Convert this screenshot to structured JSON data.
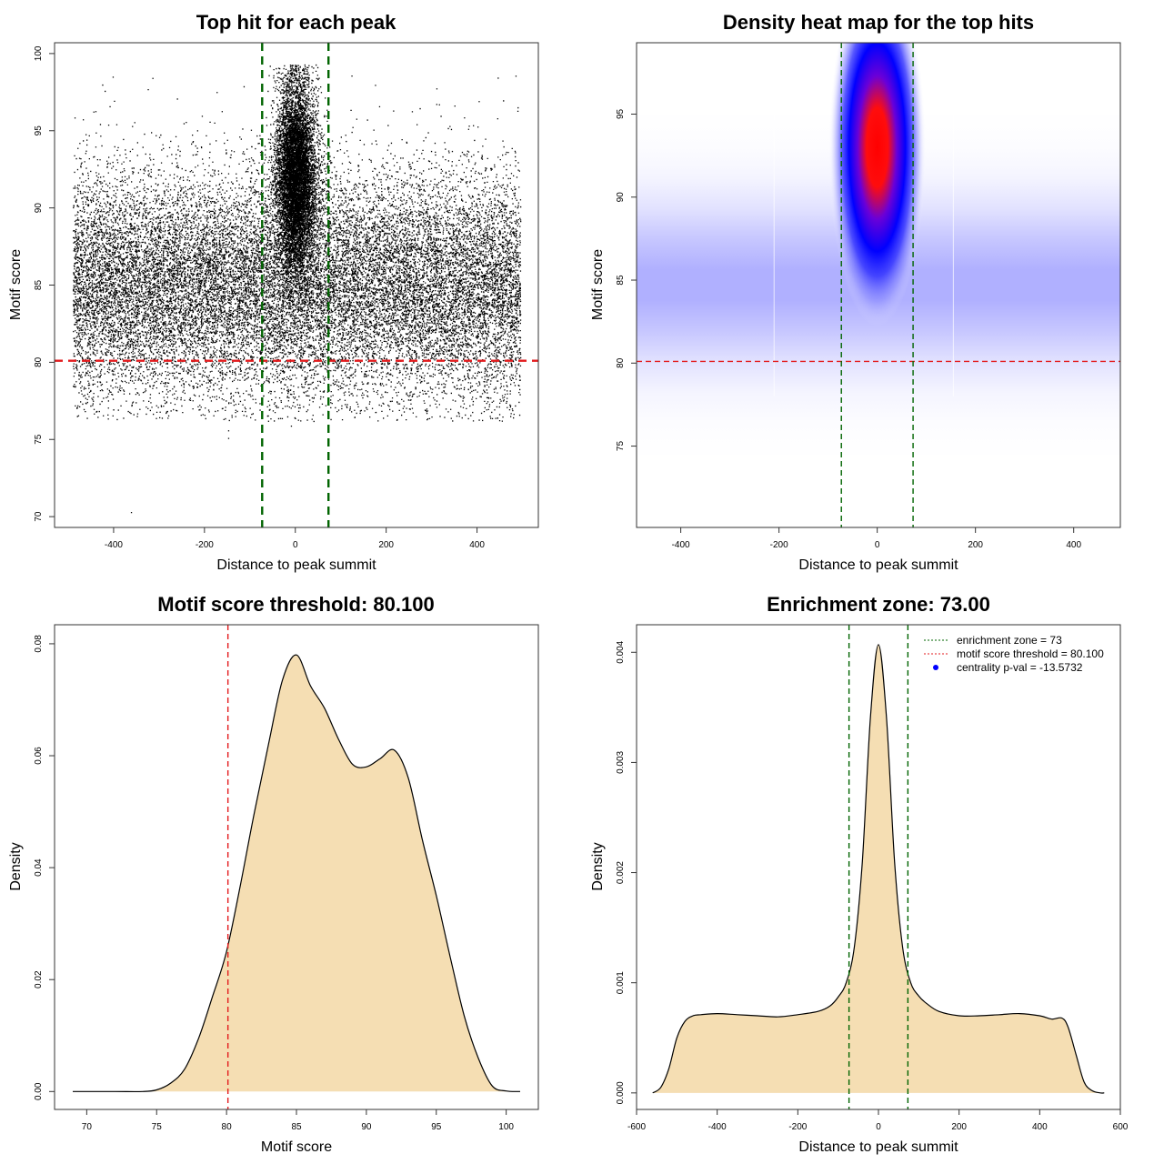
{
  "chart_data": [
    {
      "type": "scatter",
      "title": "Top hit for each peak",
      "xlabel": "Distance to peak summit",
      "ylabel": "Motif score",
      "xlim": [
        -530,
        535
      ],
      "ylim": [
        69.3,
        100.7
      ],
      "xticks": [
        -400,
        -200,
        0,
        200,
        400
      ],
      "yticks": [
        70,
        75,
        80,
        85,
        90,
        95,
        100
      ],
      "grid": false,
      "reference_lines": [
        {
          "axis": "y",
          "value": 80.1,
          "color": "#e31a1c",
          "style": "dashed"
        },
        {
          "axis": "x",
          "value": -73,
          "color": "#006400",
          "style": "dashed"
        },
        {
          "axis": "x",
          "value": 73,
          "color": "#006400",
          "style": "dashed"
        }
      ],
      "point_groups": [
        {
          "name": "background",
          "count": 22000,
          "x_range": [
            -490,
            495
          ],
          "y_mean": 85,
          "y_sd": 3.6
        },
        {
          "name": "central",
          "count": 9000,
          "x_mean": 0,
          "x_sd": 22,
          "y_mean": 92,
          "y_sd": 3.1
        }
      ],
      "outlier_points": [
        [
          -362,
          70.3
        ],
        [
          -148,
          75.1
        ],
        [
          -148,
          75.6
        ],
        [
          -10,
          75.9
        ],
        [
          -18,
          76.5
        ]
      ]
    },
    {
      "type": "heatmap",
      "title": "Density heat map for the top hits",
      "xlabel": "Distance to peak summit",
      "ylabel": "Motif score",
      "xlim": [
        -490,
        495
      ],
      "ylim": [
        70.1,
        99.3
      ],
      "xticks": [
        -400,
        -200,
        0,
        200,
        400
      ],
      "yticks": [
        75,
        80,
        85,
        90,
        95
      ],
      "color_scale": [
        "#ffffff",
        "#0000ff",
        "#ff0000"
      ],
      "density_components": [
        {
          "x_mean": 0,
          "x_sd": 30,
          "y_mean": 93,
          "y_sd": 3.6,
          "weight": 1.0
        },
        {
          "x_range": [
            -490,
            495
          ],
          "y_mean": 84.7,
          "y_sd": 3.2,
          "weight": 0.32
        }
      ],
      "reference_lines": [
        {
          "axis": "y",
          "value": 80.1,
          "color": "#e31a1c",
          "style": "dashed"
        },
        {
          "axis": "x",
          "value": -73,
          "color": "#006400",
          "style": "dashed"
        },
        {
          "axis": "x",
          "value": 73,
          "color": "#006400",
          "style": "dashed"
        }
      ]
    },
    {
      "type": "area",
      "title": "Motif score threshold: 80.100",
      "xlabel": "Motif score",
      "ylabel": "Density",
      "xlim": [
        67.7,
        102.3
      ],
      "ylim": [
        -0.0032,
        0.0834
      ],
      "xticks": [
        70,
        75,
        80,
        85,
        90,
        95,
        100
      ],
      "yticks": [
        0.0,
        0.02,
        0.04,
        0.06,
        0.08
      ],
      "ytick_labels": [
        "0.00",
        "0.02",
        "0.04",
        "0.06",
        "0.08"
      ],
      "fill": "#f5deb3",
      "x": [
        69,
        72,
        74,
        75,
        76,
        77,
        78,
        79,
        80,
        81,
        82,
        83,
        84,
        85,
        86,
        87,
        88,
        89,
        90,
        91,
        92,
        93,
        94,
        95,
        96,
        97,
        98,
        99,
        100,
        101
      ],
      "values": [
        0,
        0,
        0,
        0.0003,
        0.0015,
        0.004,
        0.0095,
        0.017,
        0.025,
        0.037,
        0.05,
        0.062,
        0.0735,
        0.078,
        0.0725,
        0.0685,
        0.063,
        0.0585,
        0.058,
        0.0595,
        0.061,
        0.056,
        0.045,
        0.035,
        0.024,
        0.0135,
        0.006,
        0.001,
        0.0001,
        0
      ],
      "reference_lines": [
        {
          "axis": "x",
          "value": 80.1,
          "color": "#e31a1c",
          "style": "dashed"
        }
      ]
    },
    {
      "type": "area",
      "title": "Enrichment zone: 73.00",
      "xlabel": "Distance to peak summit",
      "ylabel": "Density",
      "xlim": [
        -600,
        600
      ],
      "ylim": [
        -0.00015,
        0.00425
      ],
      "xticks": [
        -600,
        -400,
        -200,
        0,
        200,
        400,
        600
      ],
      "yticks": [
        0.0,
        0.001,
        0.002,
        0.003,
        0.004
      ],
      "ytick_labels": [
        "0.000",
        "0.001",
        "0.002",
        "0.003",
        "0.004"
      ],
      "fill": "#f5deb3",
      "x": [
        -560,
        -540,
        -520,
        -500,
        -480,
        -460,
        -440,
        -400,
        -350,
        -300,
        -250,
        -200,
        -150,
        -120,
        -100,
        -80,
        -60,
        -40,
        -20,
        0,
        20,
        40,
        60,
        80,
        100,
        120,
        150,
        200,
        250,
        300,
        350,
        400,
        430,
        455,
        470,
        490,
        510,
        530,
        550,
        560
      ],
      "values": [
        0,
        5e-05,
        0.00022,
        0.0005,
        0.00065,
        0.0007,
        0.00071,
        0.00072,
        0.00071,
        0.0007,
        0.00069,
        0.00071,
        0.00074,
        0.00079,
        0.00087,
        0.001,
        0.00132,
        0.0021,
        0.0034,
        0.00407,
        0.0034,
        0.0021,
        0.00132,
        0.001,
        0.00088,
        0.00081,
        0.00074,
        0.0007,
        0.0007,
        0.00071,
        0.00072,
        0.0007,
        0.00067,
        0.00068,
        0.0006,
        0.00035,
        0.0001,
        2e-05,
        0,
        0
      ],
      "reference_lines": [
        {
          "axis": "x",
          "value": -73,
          "color": "#006400",
          "style": "dashed"
        },
        {
          "axis": "x",
          "value": 73,
          "color": "#006400",
          "style": "dashed"
        }
      ],
      "legend_position": "top-right",
      "legend": [
        {
          "label": "enrichment zone = 73",
          "color": "#006400",
          "symbol": "dotted-line"
        },
        {
          "label": "motif score threshold = 80.100",
          "color": "#e31a1c",
          "symbol": "dotted-line"
        },
        {
          "label": "centrality p-val = -13.5732",
          "color": "#0000ff",
          "symbol": "dot"
        }
      ]
    }
  ]
}
